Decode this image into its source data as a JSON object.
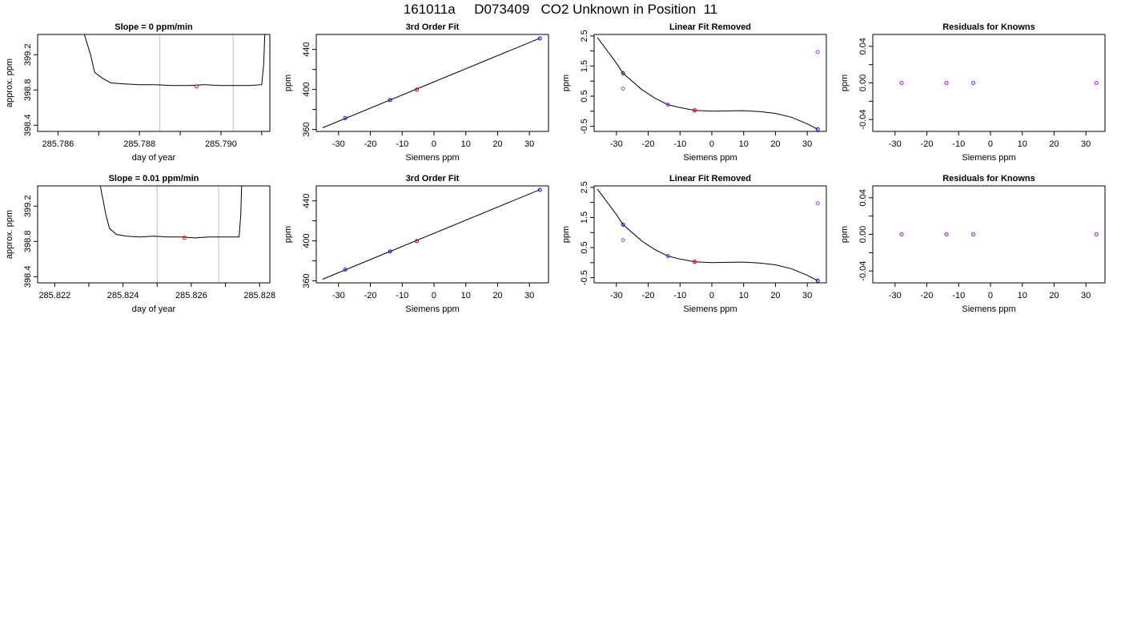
{
  "page_title": "161011a     D073409   CO2 Unknown in Position  11",
  "colors": {
    "known": "#0000ff",
    "unknown": "#ff0000",
    "raw": "#b03ce0",
    "line": "#000000",
    "cursor": "#c8c8c8"
  },
  "chart_data": [
    {
      "type": "line",
      "title": "Slope =  0  ppm/min",
      "xlabel": "day of year",
      "ylabel": "approx. ppm",
      "xlim": [
        285.7855,
        285.7912
      ],
      "ylim": [
        398.33,
        399.43
      ],
      "xticks": [
        "285.786",
        "285.788",
        "285.790"
      ],
      "xtick_values": [
        285.786,
        285.788,
        285.79
      ],
      "yticks": [
        "398.4",
        "398.8",
        "399.2"
      ],
      "ytick_values": [
        398.4,
        398.8,
        399.2
      ],
      "minor_xticks": [
        285.787,
        285.789,
        285.791
      ],
      "vlines": [
        285.7885,
        285.7903
      ],
      "series": [
        {
          "x": [
            285.7866,
            285.7868,
            285.7869,
            285.7871,
            285.7873,
            285.7876,
            285.788,
            285.7884,
            285.7888,
            285.7892,
            285.7896,
            285.79,
            285.7904,
            285.7907,
            285.791,
            285.79105,
            285.79108
          ],
          "y": [
            399.5,
            399.2,
            399.0,
            398.93,
            398.88,
            398.87,
            398.86,
            398.86,
            398.85,
            398.85,
            398.86,
            398.85,
            398.85,
            398.85,
            398.86,
            399.1,
            399.5
          ]
        }
      ],
      "points": [
        {
          "x": 285.7894,
          "y": 398.84,
          "role": "unknown"
        }
      ]
    },
    {
      "type": "scatter",
      "title": "3rd Order Fit",
      "xlabel": "Siemens ppm",
      "ylabel": "ppm",
      "xlim": [
        -37,
        36
      ],
      "ylim": [
        358,
        455
      ],
      "xticks": [
        "-30",
        "-20",
        "-10",
        "0",
        "10",
        "20",
        "30"
      ],
      "xtick_values": [
        -30,
        -20,
        -10,
        0,
        10,
        20,
        30
      ],
      "yticks": [
        "360",
        "400",
        "440"
      ],
      "ytick_values": [
        360,
        400,
        440
      ],
      "minor_yticks": [
        380,
        420
      ],
      "curve": {
        "x": [
          -35,
          33.3
        ],
        "y": [
          361.6,
          451.2
        ]
      },
      "points": [
        {
          "x": -27.9,
          "y": 371.3,
          "role": "known"
        },
        {
          "x": -13.8,
          "y": 389.4,
          "role": "known"
        },
        {
          "x": -5.4,
          "y": 399.8,
          "role": "known"
        },
        {
          "x": 33.3,
          "y": 451.0,
          "role": "known"
        },
        {
          "x": -5.4,
          "y": 399.8,
          "role": "unknown"
        }
      ]
    },
    {
      "type": "scatter",
      "title": "Linear Fit Removed",
      "xlabel": "Siemens ppm",
      "ylabel": "ppm",
      "xlim": [
        -37,
        36
      ],
      "ylim": [
        -0.67,
        2.55
      ],
      "xticks": [
        "-30",
        "-20",
        "-10",
        "0",
        "10",
        "20",
        "30"
      ],
      "xtick_values": [
        -30,
        -20,
        -10,
        0,
        10,
        20,
        30
      ],
      "yticks": [
        "-0.5",
        "0.5",
        "1.5",
        "2.5"
      ],
      "ytick_values": [
        -0.5,
        0.5,
        1.5,
        2.5
      ],
      "minor_yticks": [
        0,
        1,
        2
      ],
      "curve": {
        "x": [
          -36,
          -30,
          -27.9,
          -22,
          -18,
          -13.8,
          -10,
          -5.4,
          0,
          5,
          10,
          15,
          20,
          25,
          30,
          33.3
        ],
        "y": [
          2.45,
          1.6,
          1.26,
          0.72,
          0.44,
          0.22,
          0.12,
          0.03,
          0.0,
          0.01,
          0.02,
          -0.01,
          -0.07,
          -0.2,
          -0.42,
          -0.6
        ]
      },
      "points": [
        {
          "x": -27.9,
          "y": 1.26,
          "role": "known"
        },
        {
          "x": -13.8,
          "y": 0.22,
          "role": "known"
        },
        {
          "x": -5.4,
          "y": 0.03,
          "role": "known"
        },
        {
          "x": 33.3,
          "y": -0.6,
          "role": "known"
        },
        {
          "x": -27.9,
          "y": 0.75,
          "role": "raw"
        },
        {
          "x": -13.8,
          "y": 0.22,
          "role": "raw"
        },
        {
          "x": -5.4,
          "y": 0.03,
          "role": "raw"
        },
        {
          "x": 33.3,
          "y": 1.97,
          "role": "raw"
        },
        {
          "x": -5.4,
          "y": 0.03,
          "role": "unknown"
        }
      ]
    },
    {
      "type": "scatter",
      "title": "Residuals for Knowns",
      "xlabel": "Siemens ppm",
      "ylabel": "ppm",
      "xlim": [
        -37,
        36
      ],
      "ylim": [
        -0.053,
        0.053
      ],
      "xticks": [
        "-30",
        "-20",
        "-10",
        "0",
        "10",
        "20",
        "30"
      ],
      "xtick_values": [
        -30,
        -20,
        -10,
        0,
        10,
        20,
        30
      ],
      "yticks": [
        "-0.04",
        "0.00",
        "0.04"
      ],
      "ytick_values": [
        -0.04,
        0.0,
        0.04
      ],
      "minor_yticks": [
        -0.02,
        0.02
      ],
      "points": [
        {
          "x": -27.9,
          "y": 0.0,
          "role": "known"
        },
        {
          "x": -13.8,
          "y": 0.0,
          "role": "known"
        },
        {
          "x": -5.4,
          "y": 0.0,
          "role": "known"
        },
        {
          "x": 33.3,
          "y": 0.0,
          "role": "known"
        },
        {
          "x": -27.9,
          "y": 0.0,
          "role": "raw"
        },
        {
          "x": -13.8,
          "y": 0.0,
          "role": "raw"
        },
        {
          "x": -5.4,
          "y": 0.0,
          "role": "raw"
        },
        {
          "x": 33.3,
          "y": 0.0,
          "role": "raw"
        }
      ]
    },
    {
      "type": "line",
      "title": "Slope =  0.01  ppm/min",
      "xlabel": "day of year",
      "ylabel": "approx. ppm",
      "xlim": [
        285.8215,
        285.8283
      ],
      "ylim": [
        398.33,
        399.43
      ],
      "xticks": [
        "285.822",
        "285.824",
        "285.826",
        "285.828"
      ],
      "xtick_values": [
        285.822,
        285.824,
        285.826,
        285.828
      ],
      "yticks": [
        "398.4",
        "398.8",
        "399.2"
      ],
      "ytick_values": [
        398.4,
        398.8,
        399.2
      ],
      "minor_xticks": [
        285.823,
        285.825,
        285.827
      ],
      "vlines": [
        285.825,
        285.8268
      ],
      "series": [
        {
          "x": [
            285.8233,
            285.8235,
            285.8236,
            285.8238,
            285.8241,
            285.8245,
            285.8249,
            285.8253,
            285.8257,
            285.8261,
            285.8265,
            285.8269,
            285.8272,
            285.8274,
            285.82745,
            285.82748
          ],
          "y": [
            399.5,
            399.1,
            398.95,
            398.88,
            398.86,
            398.85,
            398.86,
            398.85,
            398.85,
            398.84,
            398.85,
            398.85,
            398.85,
            398.85,
            399.1,
            399.5
          ]
        }
      ],
      "points": [
        {
          "x": 285.8258,
          "y": 398.84,
          "role": "unknown"
        }
      ]
    },
    {
      "type": "scatter",
      "title": "3rd Order Fit",
      "xlabel": "Siemens ppm",
      "ylabel": "ppm",
      "xlim": [
        -37,
        36
      ],
      "ylim": [
        358,
        455
      ],
      "xticks": [
        "-30",
        "-20",
        "-10",
        "0",
        "10",
        "20",
        "30"
      ],
      "xtick_values": [
        -30,
        -20,
        -10,
        0,
        10,
        20,
        30
      ],
      "yticks": [
        "360",
        "400",
        "440"
      ],
      "ytick_values": [
        360,
        400,
        440
      ],
      "minor_yticks": [
        380,
        420
      ],
      "curve": {
        "x": [
          -35,
          33.3
        ],
        "y": [
          361.6,
          451.2
        ]
      },
      "points": [
        {
          "x": -27.9,
          "y": 371.3,
          "role": "known"
        },
        {
          "x": -13.8,
          "y": 389.4,
          "role": "known"
        },
        {
          "x": -5.4,
          "y": 399.8,
          "role": "known"
        },
        {
          "x": 33.3,
          "y": 451.0,
          "role": "known"
        },
        {
          "x": -5.4,
          "y": 399.8,
          "role": "unknown"
        }
      ]
    },
    {
      "type": "scatter",
      "title": "Linear Fit Removed",
      "xlabel": "Siemens ppm",
      "ylabel": "ppm",
      "xlim": [
        -37,
        36
      ],
      "ylim": [
        -0.67,
        2.55
      ],
      "xticks": [
        "-30",
        "-20",
        "-10",
        "0",
        "10",
        "20",
        "30"
      ],
      "xtick_values": [
        -30,
        -20,
        -10,
        0,
        10,
        20,
        30
      ],
      "yticks": [
        "-0.5",
        "0.5",
        "1.5",
        "2.5"
      ],
      "ytick_values": [
        -0.5,
        0.5,
        1.5,
        2.5
      ],
      "minor_yticks": [
        0,
        1,
        2
      ],
      "curve": {
        "x": [
          -36,
          -30,
          -27.9,
          -22,
          -18,
          -13.8,
          -10,
          -5.4,
          0,
          5,
          10,
          15,
          20,
          25,
          30,
          33.3
        ],
        "y": [
          2.45,
          1.6,
          1.26,
          0.72,
          0.44,
          0.22,
          0.12,
          0.03,
          0.0,
          0.01,
          0.02,
          -0.01,
          -0.07,
          -0.2,
          -0.42,
          -0.6
        ]
      },
      "points": [
        {
          "x": -27.9,
          "y": 1.26,
          "role": "known"
        },
        {
          "x": -13.8,
          "y": 0.22,
          "role": "known"
        },
        {
          "x": -5.4,
          "y": 0.03,
          "role": "known"
        },
        {
          "x": 33.3,
          "y": -0.6,
          "role": "known"
        },
        {
          "x": -27.9,
          "y": 0.75,
          "role": "raw"
        },
        {
          "x": -13.8,
          "y": 0.22,
          "role": "raw"
        },
        {
          "x": -5.4,
          "y": 0.03,
          "role": "raw"
        },
        {
          "x": 33.3,
          "y": 1.97,
          "role": "raw"
        },
        {
          "x": -5.4,
          "y": 0.03,
          "role": "unknown"
        }
      ]
    },
    {
      "type": "scatter",
      "title": "Residuals for Knowns",
      "xlabel": "Siemens ppm",
      "ylabel": "ppm",
      "xlim": [
        -37,
        36
      ],
      "ylim": [
        -0.053,
        0.053
      ],
      "xticks": [
        "-30",
        "-20",
        "-10",
        "0",
        "10",
        "20",
        "30"
      ],
      "xtick_values": [
        -30,
        -20,
        -10,
        0,
        10,
        20,
        30
      ],
      "yticks": [
        "-0.04",
        "0.00",
        "0.04"
      ],
      "ytick_values": [
        -0.04,
        0.0,
        0.04
      ],
      "minor_yticks": [
        -0.02,
        0.02
      ],
      "points": [
        {
          "x": -27.9,
          "y": 0.0,
          "role": "known"
        },
        {
          "x": -13.8,
          "y": 0.0,
          "role": "known"
        },
        {
          "x": -5.4,
          "y": 0.0,
          "role": "known"
        },
        {
          "x": 33.3,
          "y": 0.0,
          "role": "known"
        },
        {
          "x": -27.9,
          "y": 0.0,
          "role": "raw"
        },
        {
          "x": -13.8,
          "y": 0.0,
          "role": "raw"
        },
        {
          "x": -5.4,
          "y": 0.0,
          "role": "raw"
        },
        {
          "x": 33.3,
          "y": 0.0,
          "role": "raw"
        }
      ]
    }
  ]
}
